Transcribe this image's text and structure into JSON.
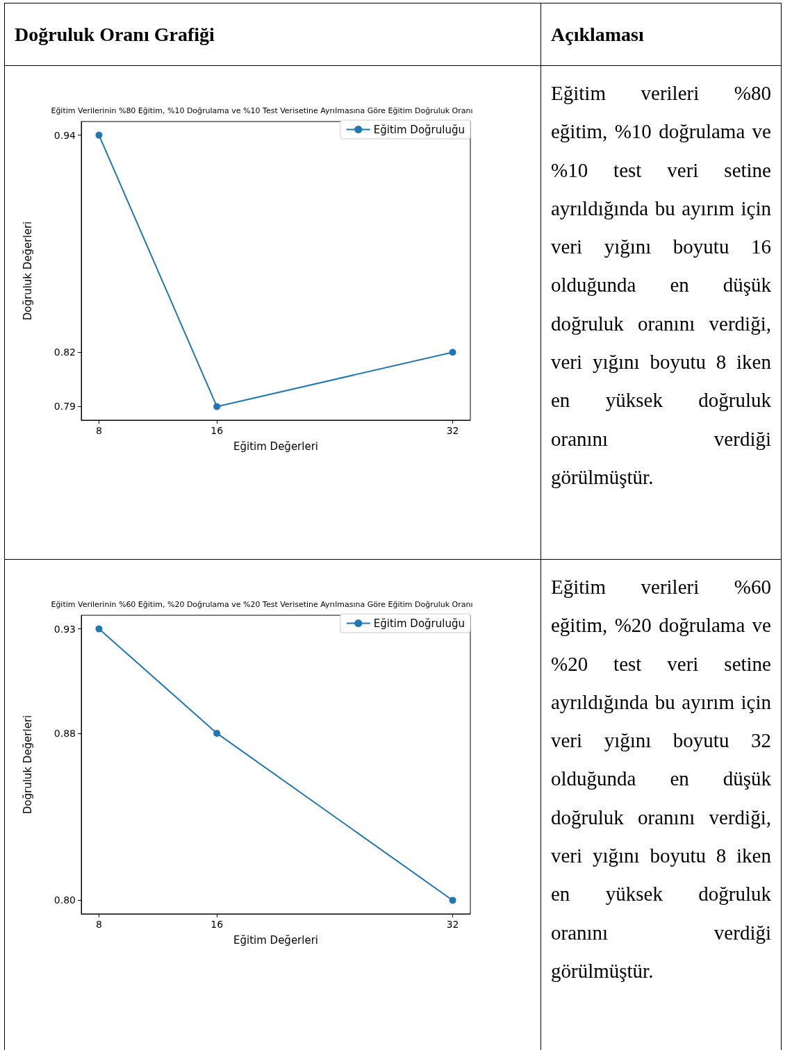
{
  "chart_data": [
    {
      "type": "other",
      "annotations": [
        "Doğruluk Oranı Grafiği",
        "Açıklaması"
      ]
    },
    {
      "type": "line",
      "title": "Eğitim Verilerinin %80 Eğitim, %10 Doğrulama ve %10 Test Verisetine Ayrılmasına Göre Eğitim Doğruluk Oranı",
      "xlabel": "Eğitim Değerleri",
      "ylabel": "Doğruluk Değerleri",
      "x": [
        8,
        16,
        32
      ],
      "xlim": [
        6.8,
        33.2
      ],
      "xticks": [
        8,
        16,
        32
      ],
      "ylim": [
        0.7825,
        0.9475
      ],
      "yticks": [
        0.79,
        0.82,
        0.94
      ],
      "series": [
        {
          "name": "Eğitim Doğruluğu",
          "color": "#1f77b4",
          "values": [
            0.94,
            0.79,
            0.82
          ]
        }
      ],
      "marker": "circle",
      "legend": "top right",
      "grid": false
    },
    {
      "type": "other",
      "annotations": [
        "Eğitim verileri %80 eğitim, %10 doğrulama ve %10 test veri setine ayrıldığında bu ayırım için veri yığını boyutu 16 olduğunda en düşük doğruluk oranını verdiği, veri yığını boyutu 8 iken en yüksek doğruluk oranını verdiği görülmüştür."
      ]
    },
    {
      "type": "line",
      "title": "Eğitim Verilerinin %60 Eğitim, %20 Doğrulama ve %20 Test Verisetine Ayrılmasına Göre Eğitim Doğruluk Oranı",
      "xlabel": "Eğitim Değerleri",
      "ylabel": "Doğruluk Değerleri",
      "x": [
        8,
        16,
        32
      ],
      "xlim": [
        6.8,
        33.2
      ],
      "xticks": [
        8,
        16,
        32
      ],
      "ylim": [
        0.7935,
        0.9365
      ],
      "yticks": [
        {
          "value": 0.8,
          "label": "0.80"
        },
        0.88,
        0.93
      ],
      "series": [
        {
          "name": "Eğitim Doğruluğu",
          "color": "#1f77b4",
          "values": [
            0.93,
            0.88,
            0.8
          ]
        }
      ],
      "marker": "circle",
      "legend": "top right",
      "grid": false
    },
    {
      "type": "other",
      "annotations": [
        "Eğitim verileri %60 eğitim, %20 doğrulama ve %20 test veri setine ayrıldığında bu ayırım için veri yığını boyutu 32 olduğunda en düşük doğruluk oranını verdiği, veri yığını boyutu 8 iken en yüksek doğruluk oranını verdiği görülmüştür."
      ]
    }
  ]
}
